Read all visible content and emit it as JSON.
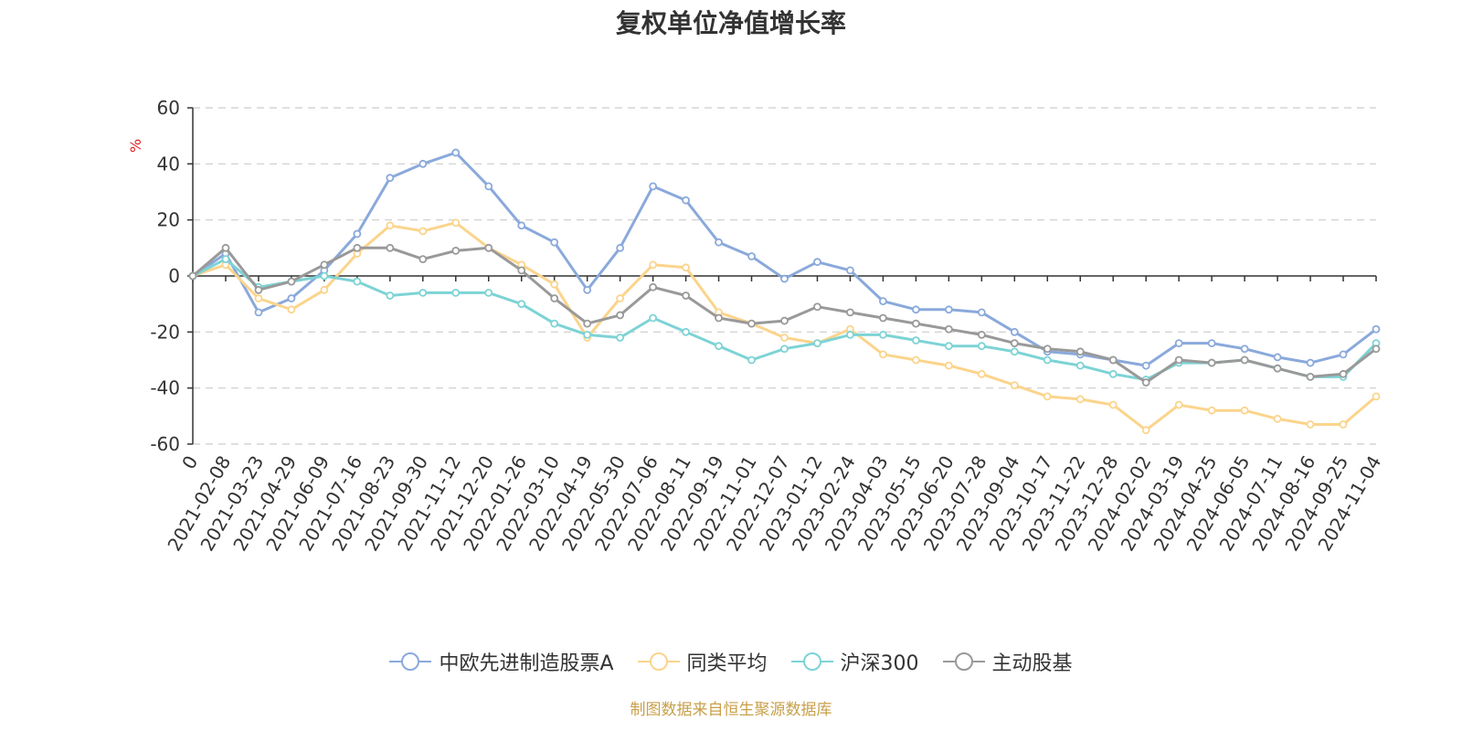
{
  "chart_data": {
    "type": "line",
    "title": "复权单位净值增长率",
    "ylabel": "%",
    "ylim": [
      -60,
      60
    ],
    "yticks": [
      60,
      40,
      20,
      0,
      -20,
      -40,
      -60
    ],
    "grid": true,
    "legend_position": "bottom",
    "x_categories": [
      "0",
      "2021-02-08",
      "2021-03-23",
      "2021-04-29",
      "2021-06-09",
      "2021-07-16",
      "2021-08-23",
      "2021-09-30",
      "2021-11-12",
      "2021-12-20",
      "2022-01-26",
      "2022-03-10",
      "2022-04-19",
      "2022-05-30",
      "2022-07-06",
      "2022-08-11",
      "2022-09-19",
      "2022-11-01",
      "2022-12-07",
      "2023-01-12",
      "2023-02-24",
      "2023-04-03",
      "2023-05-15",
      "2023-06-20",
      "2023-07-28",
      "2023-09-04",
      "2023-10-17",
      "2023-11-22",
      "2023-12-28",
      "2024-02-02",
      "2024-03-19",
      "2024-04-25",
      "2024-06-05",
      "2024-07-11",
      "2024-08-16",
      "2024-09-25",
      "2024-11-04"
    ],
    "series": [
      {
        "name": "中欧先进制造股票A",
        "color": "#8aa9db",
        "values": [
          0,
          8,
          -13,
          -8,
          2,
          15,
          35,
          40,
          44,
          32,
          18,
          12,
          -5,
          10,
          32,
          27,
          12,
          7,
          -1,
          5,
          2,
          -9,
          -12,
          -12,
          -13,
          -20,
          -27,
          -28,
          -30,
          -32,
          -24,
          -24,
          -26,
          -29,
          -31,
          -28,
          -19
        ]
      },
      {
        "name": "同类平均",
        "color": "#fbd48c",
        "values": [
          0,
          4,
          -8,
          -12,
          -5,
          8,
          18,
          16,
          19,
          10,
          4,
          -3,
          -22,
          -8,
          4,
          3,
          -13,
          -17,
          -22,
          -24,
          -19,
          -28,
          -30,
          -32,
          -35,
          -39,
          -43,
          -44,
          -46,
          -55,
          -46,
          -48,
          -48,
          -51,
          -53,
          -53,
          -43
        ]
      },
      {
        "name": "沪深300",
        "color": "#7dd3d5",
        "values": [
          0,
          6,
          -4,
          -2,
          0,
          -2,
          -7,
          -6,
          -6,
          -6,
          -10,
          -17,
          -21,
          -22,
          -15,
          -20,
          -25,
          -30,
          -26,
          -24,
          -21,
          -21,
          -23,
          -25,
          -25,
          -27,
          -30,
          -32,
          -35,
          -37,
          -31,
          -31,
          -30,
          -33,
          -36,
          -36,
          -24
        ]
      },
      {
        "name": "主动股基",
        "color": "#999999",
        "values": [
          0,
          10,
          -5,
          -2,
          4,
          10,
          10,
          6,
          9,
          10,
          2,
          -8,
          -17,
          -14,
          -4,
          -7,
          -15,
          -17,
          -16,
          -11,
          -13,
          -15,
          -17,
          -19,
          -21,
          -24,
          -26,
          -27,
          -30,
          -38,
          -30,
          -31,
          -30,
          -33,
          -36,
          -35,
          -26
        ]
      }
    ]
  },
  "legend_icon": "circle-line",
  "source_note": "制图数据来自恒生聚源数据库"
}
